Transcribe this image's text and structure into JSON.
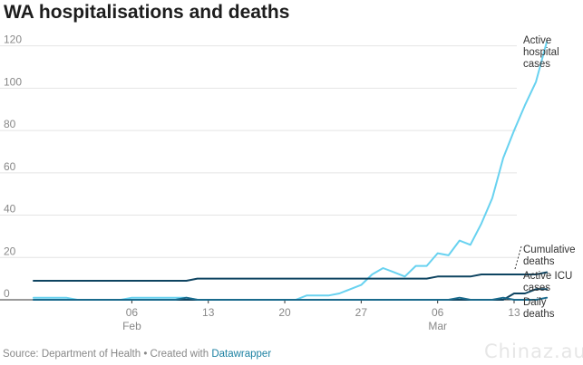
{
  "title": "WA hospitalisations and deaths",
  "footer": {
    "source_prefix": "Source: Department of Health • Created with ",
    "tool": "Datawrapper"
  },
  "watermark": "Chinaz.au",
  "colors": {
    "hospital": "#68d2f0",
    "cumulative": "#0e4461",
    "icu": "#0e4461",
    "daily": "#1a6a8c",
    "grid": "#e4e4e4",
    "axis": "#333333"
  },
  "chart_data": {
    "type": "line",
    "title": "WA hospitalisations and deaths",
    "x_start": "2022-01-28",
    "x_end": "2022-03-13",
    "ylim": [
      0,
      122
    ],
    "y_ticks": [
      0,
      20,
      40,
      60,
      80,
      100,
      120
    ],
    "x_ticks": [
      {
        "date": "2022-02-06",
        "label": "06",
        "sub": "Feb"
      },
      {
        "date": "2022-02-13",
        "label": "13",
        "sub": ""
      },
      {
        "date": "2022-02-20",
        "label": "20",
        "sub": ""
      },
      {
        "date": "2022-02-27",
        "label": "27",
        "sub": ""
      },
      {
        "date": "2022-03-06",
        "label": "06",
        "sub": "Mar"
      },
      {
        "date": "2022-03-13",
        "label": "13",
        "sub": ""
      }
    ],
    "grid": true,
    "series": [
      {
        "key": "hospital",
        "name": "Active hospital cases",
        "label_lines": [
          "Active",
          "hospital",
          "cases"
        ],
        "values": [
          1,
          1,
          1,
          1,
          0,
          0,
          0,
          0,
          0,
          1,
          1,
          1,
          1,
          1,
          1,
          0,
          0,
          0,
          0,
          0,
          0,
          0,
          0,
          0,
          0,
          2,
          2,
          2,
          3,
          5,
          7,
          12,
          15,
          13,
          11,
          16,
          16,
          22,
          21,
          28,
          26,
          36,
          48,
          67,
          80,
          92,
          103,
          122
        ]
      },
      {
        "key": "cumulative",
        "name": "Cumulative deaths",
        "label_lines": [
          "Cumulative",
          "deaths"
        ],
        "values": [
          9,
          9,
          9,
          9,
          9,
          9,
          9,
          9,
          9,
          9,
          9,
          9,
          9,
          9,
          9,
          10,
          10,
          10,
          10,
          10,
          10,
          10,
          10,
          10,
          10,
          10,
          10,
          10,
          10,
          10,
          10,
          10,
          10,
          10,
          10,
          10,
          10,
          11,
          11,
          11,
          11,
          12,
          12,
          12,
          12,
          12,
          12,
          13
        ]
      },
      {
        "key": "icu",
        "name": "Active ICU cases",
        "label_lines": [
          "Active ICU",
          "cases"
        ],
        "values": [
          0,
          0,
          0,
          0,
          0,
          0,
          0,
          0,
          0,
          0,
          0,
          0,
          0,
          0,
          0,
          0,
          0,
          0,
          0,
          0,
          0,
          0,
          0,
          0,
          0,
          0,
          0,
          0,
          0,
          0,
          0,
          0,
          0,
          0,
          0,
          0,
          0,
          0,
          0,
          0,
          0,
          0,
          0,
          0,
          3,
          3,
          5,
          5
        ]
      },
      {
        "key": "daily",
        "name": "Daily deaths",
        "label_lines": [
          "Daily",
          "deaths"
        ],
        "values": [
          0,
          0,
          0,
          0,
          0,
          0,
          0,
          0,
          0,
          0,
          0,
          0,
          0,
          0,
          1,
          0,
          0,
          0,
          0,
          0,
          0,
          0,
          0,
          0,
          0,
          0,
          0,
          0,
          0,
          0,
          0,
          0,
          0,
          0,
          0,
          0,
          0,
          0,
          0,
          1,
          0,
          0,
          0,
          1,
          0,
          0,
          0,
          1
        ]
      }
    ]
  }
}
